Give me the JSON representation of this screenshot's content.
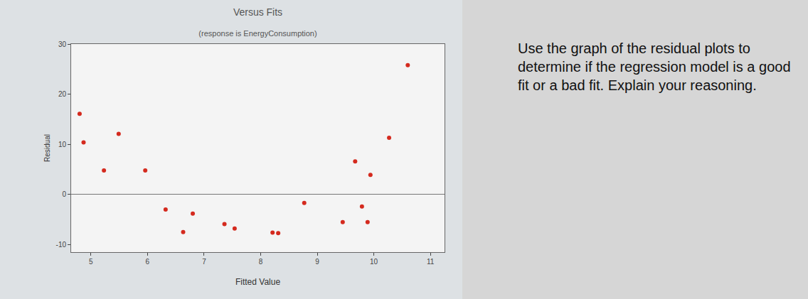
{
  "chart_data": {
    "type": "scatter",
    "title": "Versus Fits",
    "subtitle": "(response is EnergyConsumption)",
    "x_label": "Fitted Value",
    "y_label": "Residual",
    "x": [
      4.8,
      4.87,
      5.23,
      5.49,
      5.96,
      6.32,
      6.63,
      6.8,
      7.36,
      7.54,
      8.21,
      8.31,
      8.77,
      9.45,
      9.67,
      9.79,
      9.89,
      9.94,
      10.27,
      10.6
    ],
    "values": [
      16.1,
      10.4,
      4.8,
      12.1,
      4.8,
      -3.0,
      -7.5,
      -3.8,
      -5.9,
      -6.8,
      -7.6,
      -7.7,
      -1.7,
      -5.5,
      6.6,
      -2.4,
      -5.5,
      3.9,
      11.3,
      25.8
    ],
    "color": "#d42a1e",
    "marker": "circle",
    "xlim": [
      4.65,
      11.25
    ],
    "xticks": [
      5,
      6,
      7,
      8,
      9,
      10,
      11
    ],
    "ylim": [
      -11.5,
      30
    ],
    "yticks": [
      -10,
      0,
      10,
      20,
      30
    ],
    "grid": false,
    "annotations": [
      "Use the graph of the residual plots to determine if the regression model is a good fit or a bad fit.  Explain your reasoning."
    ]
  }
}
